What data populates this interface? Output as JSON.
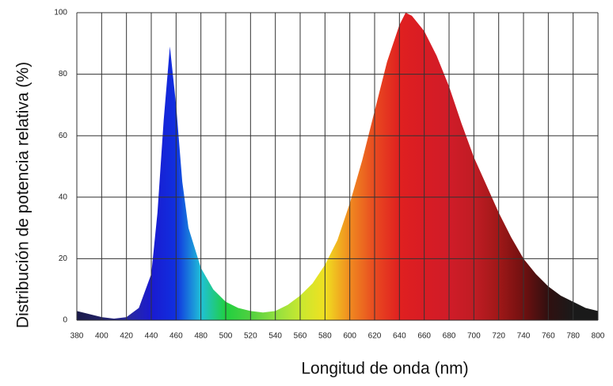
{
  "chart_data": {
    "type": "area",
    "x_label": "Longitud de onda (nm)",
    "y_label": "Distribución de potencia relativa (%)",
    "x": [
      380,
      390,
      400,
      410,
      420,
      430,
      440,
      445,
      450,
      455,
      460,
      465,
      470,
      480,
      490,
      500,
      510,
      520,
      530,
      540,
      550,
      560,
      570,
      580,
      590,
      600,
      610,
      620,
      630,
      640,
      645,
      650,
      660,
      670,
      680,
      690,
      700,
      710,
      720,
      730,
      740,
      750,
      760,
      770,
      780,
      790,
      800
    ],
    "values": [
      3,
      2,
      1,
      0.5,
      1,
      4,
      15,
      35,
      65,
      89,
      70,
      45,
      30,
      17,
      10,
      6,
      4,
      3,
      2.5,
      3,
      5,
      8,
      12,
      18,
      26,
      38,
      52,
      68,
      84,
      96,
      100,
      99,
      94,
      86,
      76,
      64,
      53,
      44,
      35,
      27,
      20,
      15,
      11,
      8,
      6,
      4,
      3
    ],
    "spectrum_colors": [
      "#1a1a4a",
      "#222266",
      "#2a2a9a",
      "#1a1ad0",
      "#1030e0",
      "#20c0d8",
      "#20d040",
      "#50d040",
      "#90e040",
      "#c8e830",
      "#f0e020",
      "#f08a20",
      "#e84a20",
      "#e02020",
      "#d81c24",
      "#d01c28",
      "#c01c24",
      "#a01818",
      "#701010",
      "#301010",
      "#1a1a1a",
      "#1a1a1a"
    ],
    "xlim": [
      380,
      800
    ],
    "ylim": [
      0,
      100
    ],
    "xticks": [
      380,
      400,
      420,
      440,
      460,
      480,
      500,
      520,
      540,
      560,
      580,
      600,
      620,
      640,
      660,
      680,
      700,
      720,
      740,
      760,
      780,
      800
    ],
    "yticks": [
      0,
      20,
      40,
      60,
      80,
      100
    ],
    "grid": true
  }
}
